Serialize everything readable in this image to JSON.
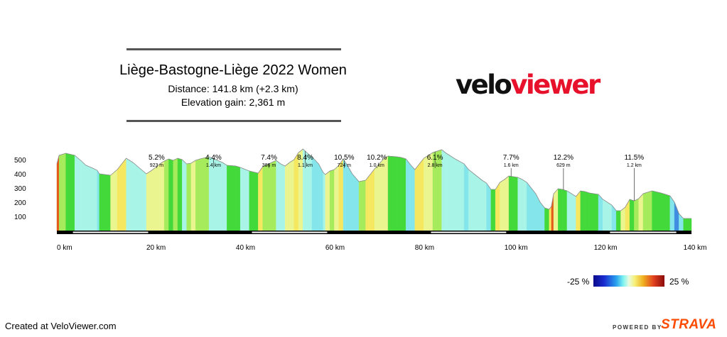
{
  "header": {
    "title": "Liège-Bastogne-Liège 2022 Women",
    "distance": "Distance: 141.8 km (+2.3 km)",
    "elevation_gain": "Elevation gain: 2,361 m"
  },
  "brand": {
    "logo_part1": "velo",
    "logo_part2": "viewer",
    "logo_color1": "#111111",
    "logo_color2": "#e8112b"
  },
  "legend": {
    "min_label": "-25 %",
    "max_label": "25 %"
  },
  "footer": {
    "created": "Created at VeloViewer.com",
    "powered": "POWERED BY",
    "strava": "STRAVA",
    "strava_color": "#fc4c02"
  },
  "chart_data": {
    "type": "area",
    "x_unit": "km",
    "y_unit": "m",
    "xlim": [
      0,
      141.8
    ],
    "ylim": [
      0,
      600
    ],
    "y_ticks": [
      100,
      200,
      300,
      400,
      500
    ],
    "x_ticks": [
      {
        "value": 0,
        "label": "0 km"
      },
      {
        "value": 20,
        "label": "20 km"
      },
      {
        "value": 40,
        "label": "40 km"
      },
      {
        "value": 60,
        "label": "60 km"
      },
      {
        "value": 80,
        "label": "80 km"
      },
      {
        "value": 100,
        "label": "100 km"
      },
      {
        "value": 120,
        "label": "120 km"
      },
      {
        "value": 140,
        "label": "140 km"
      }
    ],
    "profile": [
      [
        0,
        470
      ],
      [
        0.5,
        530
      ],
      [
        2,
        545
      ],
      [
        4,
        530
      ],
      [
        5.5,
        490
      ],
      [
        6.5,
        460
      ],
      [
        8,
        440
      ],
      [
        9,
        425
      ],
      [
        9.5,
        400
      ],
      [
        12,
        390
      ],
      [
        13.5,
        430
      ],
      [
        15.5,
        510
      ],
      [
        17,
        480
      ],
      [
        18.5,
        440
      ],
      [
        20,
        400
      ],
      [
        21,
        420
      ],
      [
        22.5,
        455
      ],
      [
        23,
        470
      ],
      [
        24,
        490
      ],
      [
        25,
        505
      ],
      [
        26,
        495
      ],
      [
        27,
        510
      ],
      [
        28,
        500
      ],
      [
        29,
        470
      ],
      [
        30,
        475
      ],
      [
        31,
        495
      ],
      [
        32,
        505
      ],
      [
        34,
        520
      ],
      [
        35.5,
        500
      ],
      [
        37,
        480
      ],
      [
        38,
        460
      ],
      [
        40,
        455
      ],
      [
        41,
        445
      ],
      [
        43,
        420
      ],
      [
        45,
        405
      ],
      [
        46,
        450
      ],
      [
        48,
        480
      ],
      [
        49,
        495
      ],
      [
        50,
        470
      ],
      [
        51,
        455
      ],
      [
        52,
        480
      ],
      [
        53,
        500
      ],
      [
        54,
        550
      ],
      [
        55,
        575
      ],
      [
        56,
        545
      ],
      [
        57,
        520
      ],
      [
        58.5,
        470
      ],
      [
        59.5,
        410
      ],
      [
        60,
        395
      ],
      [
        61,
        420
      ],
      [
        62,
        430
      ],
      [
        63,
        460
      ],
      [
        64,
        505
      ],
      [
        65,
        455
      ],
      [
        66,
        400
      ],
      [
        67.5,
        345
      ],
      [
        69,
        355
      ],
      [
        70,
        395
      ],
      [
        71,
        435
      ],
      [
        72,
        470
      ],
      [
        73,
        505
      ],
      [
        74,
        525
      ],
      [
        76,
        520
      ],
      [
        77,
        515
      ],
      [
        78,
        505
      ],
      [
        79,
        465
      ],
      [
        80,
        430
      ],
      [
        81,
        470
      ],
      [
        82,
        510
      ],
      [
        84,
        550
      ],
      [
        86,
        570
      ],
      [
        87,
        545
      ],
      [
        89,
        505
      ],
      [
        91,
        470
      ],
      [
        92,
        430
      ],
      [
        94,
        380
      ],
      [
        95,
        355
      ],
      [
        96,
        335
      ],
      [
        97,
        290
      ],
      [
        98,
        290
      ],
      [
        99,
        340
      ],
      [
        100,
        360
      ],
      [
        101,
        385
      ],
      [
        102,
        380
      ],
      [
        103,
        375
      ],
      [
        104,
        360
      ],
      [
        105,
        340
      ],
      [
        106,
        300
      ],
      [
        107,
        260
      ],
      [
        108,
        200
      ],
      [
        109,
        160
      ],
      [
        110,
        150
      ],
      [
        110.5,
        170
      ],
      [
        111,
        260
      ],
      [
        112,
        295
      ],
      [
        113,
        290
      ],
      [
        114,
        280
      ],
      [
        115,
        260
      ],
      [
        116,
        240
      ],
      [
        117,
        280
      ],
      [
        118,
        275
      ],
      [
        119,
        265
      ],
      [
        121,
        255
      ],
      [
        122,
        220
      ],
      [
        124,
        180
      ],
      [
        125,
        140
      ],
      [
        126,
        140
      ],
      [
        127,
        165
      ],
      [
        128,
        220
      ],
      [
        129,
        210
      ],
      [
        130,
        225
      ],
      [
        131,
        260
      ],
      [
        133,
        280
      ],
      [
        135,
        265
      ],
      [
        137,
        245
      ],
      [
        138,
        200
      ],
      [
        139,
        120
      ],
      [
        140,
        85
      ],
      [
        141.8,
        85
      ]
    ],
    "climbs": [
      {
        "km": 22.3,
        "grade": "5.2%",
        "length": "923 m"
      },
      {
        "km": 35.0,
        "grade": "4.4%",
        "length": "1.4 km"
      },
      {
        "km": 47.4,
        "grade": "7.4%",
        "length": "386 m"
      },
      {
        "km": 55.5,
        "grade": "8.4%",
        "length": "1.1 km"
      },
      {
        "km": 64.2,
        "grade": "10.5%",
        "length": "724 m"
      },
      {
        "km": 71.5,
        "grade": "10.2%",
        "length": "1.0 km"
      },
      {
        "km": 84.5,
        "grade": "6.1%",
        "length": "2.8 km"
      },
      {
        "km": 101.5,
        "grade": "7.7%",
        "length": "1.6 km"
      },
      {
        "km": 113.2,
        "grade": "12.2%",
        "length": "629 m"
      },
      {
        "km": 129.0,
        "grade": "11.5%",
        "length": "1.2 km"
      }
    ]
  }
}
